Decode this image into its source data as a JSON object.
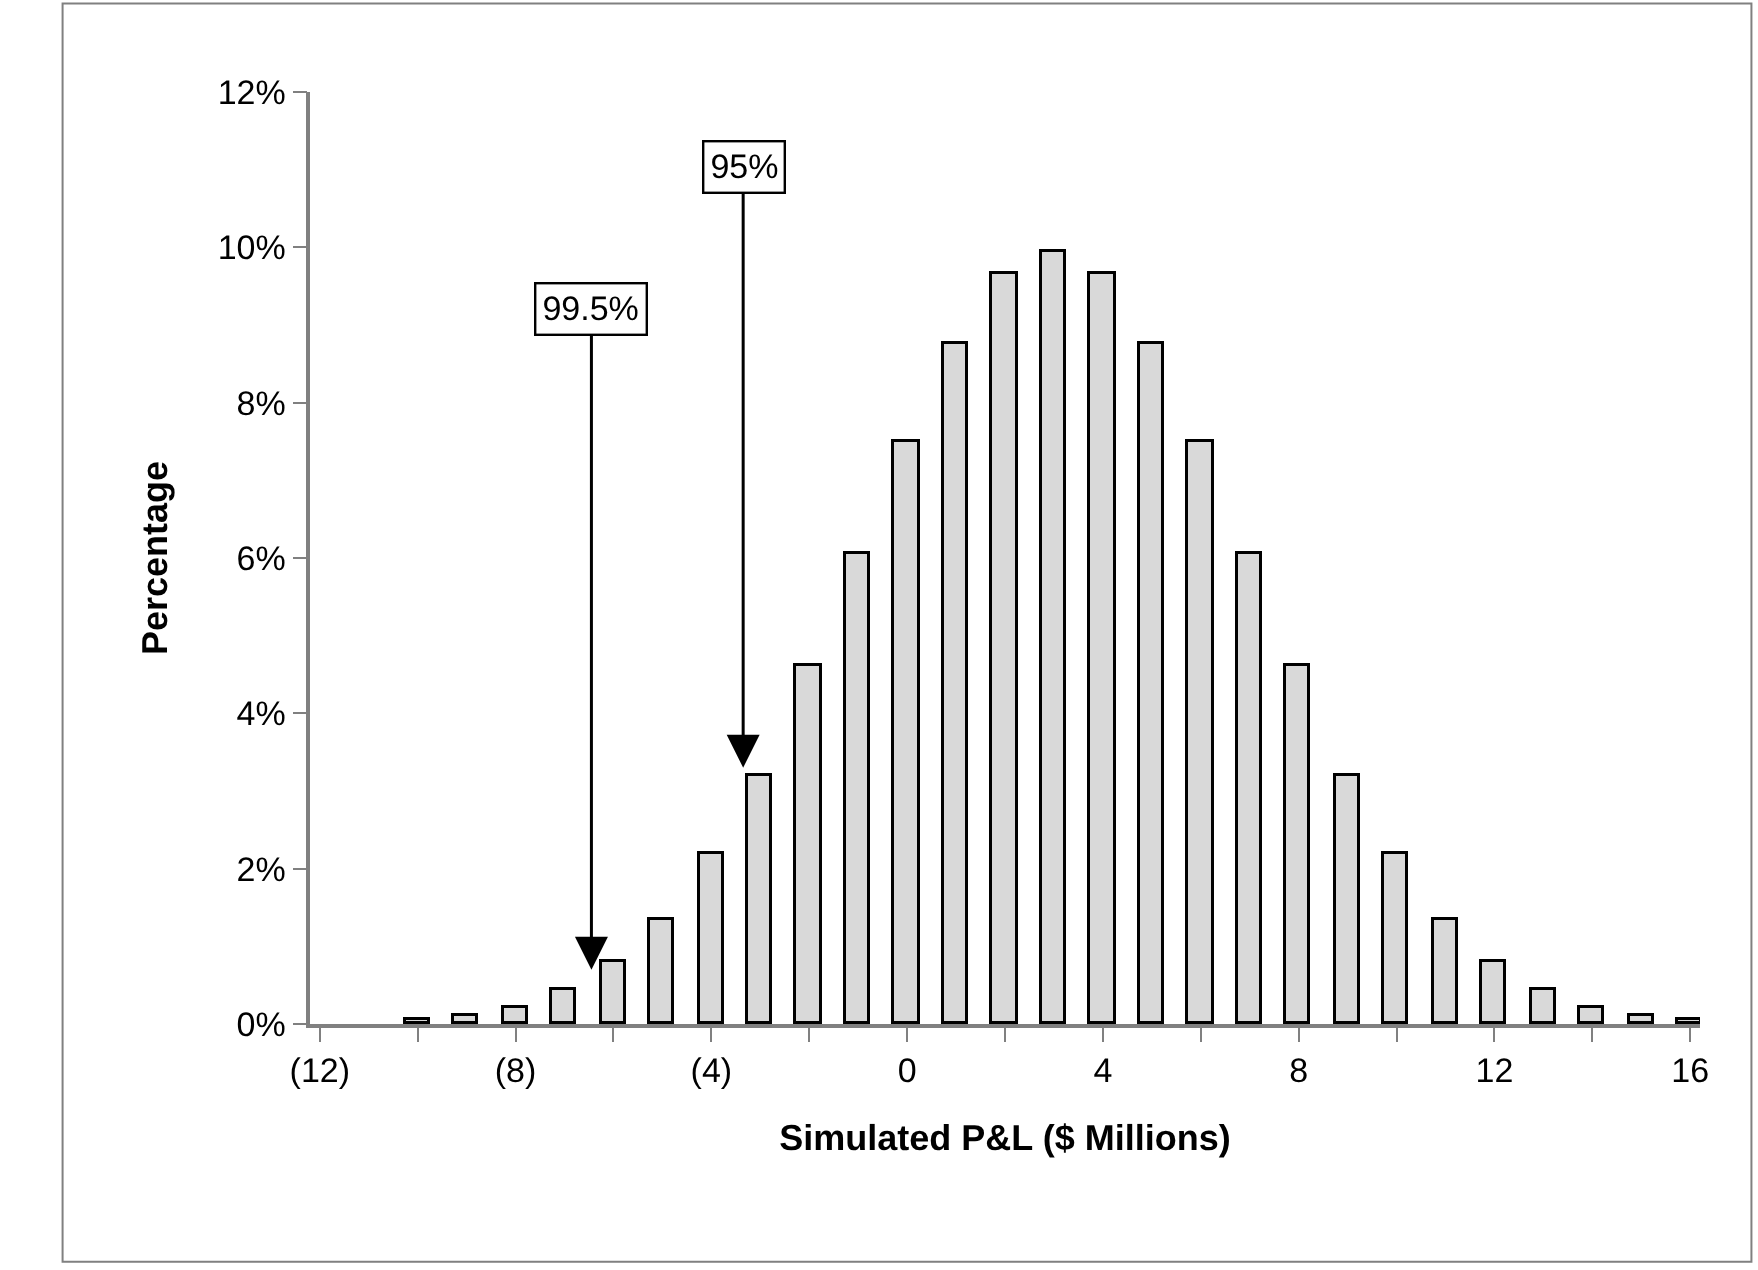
{
  "chart_data": {
    "type": "bar",
    "xlabel": "Simulated P&L ($ Millions)",
    "ylabel": "Percentage",
    "x": [
      -10,
      -9,
      -8,
      -7,
      -6,
      -5,
      -4,
      -3,
      -2,
      -1,
      0,
      1,
      2,
      3,
      4,
      5,
      6,
      7,
      8,
      9,
      10,
      11,
      12,
      13,
      14,
      15,
      16
    ],
    "values": [
      0.05,
      0.1,
      0.2,
      0.45,
      0.8,
      1.35,
      2.2,
      3.2,
      4.6,
      6.05,
      7.5,
      8.75,
      9.65,
      9.95,
      9.65,
      8.75,
      7.5,
      6.05,
      4.6,
      3.2,
      2.2,
      1.35,
      0.8,
      0.45,
      0.2,
      0.1,
      0.05
    ],
    "color": "#d9d9d9",
    "xlim": [
      -12.2,
      16.2
    ],
    "xticks": [
      {
        "value": -12,
        "label": "(12)"
      },
      {
        "value": -10,
        "label": null
      },
      {
        "value": -8,
        "label": "(8)"
      },
      {
        "value": -6,
        "label": null
      },
      {
        "value": -4,
        "label": "(4)"
      },
      {
        "value": -2,
        "label": null
      },
      0,
      {
        "value": 2,
        "label": null
      },
      4,
      {
        "value": 6,
        "label": null
      },
      8,
      {
        "value": 10,
        "label": null
      },
      12,
      {
        "value": 14,
        "label": null
      },
      16
    ],
    "ylim": [
      0,
      12
    ],
    "yticks": [
      {
        "value": 0,
        "label": "0%"
      },
      {
        "value": 2,
        "label": "2%"
      },
      {
        "value": 4,
        "label": "4%"
      },
      {
        "value": 6,
        "label": "6%"
      },
      {
        "value": 8,
        "label": "8%"
      },
      {
        "value": 10,
        "label": "10%"
      },
      {
        "value": 12,
        "label": "12%"
      }
    ],
    "annotations": [
      {
        "text": "99.5%",
        "x": -6.45,
        "y": 0.7
      },
      {
        "text": "95%",
        "x": -3.35,
        "y": 3.3
      }
    ]
  }
}
